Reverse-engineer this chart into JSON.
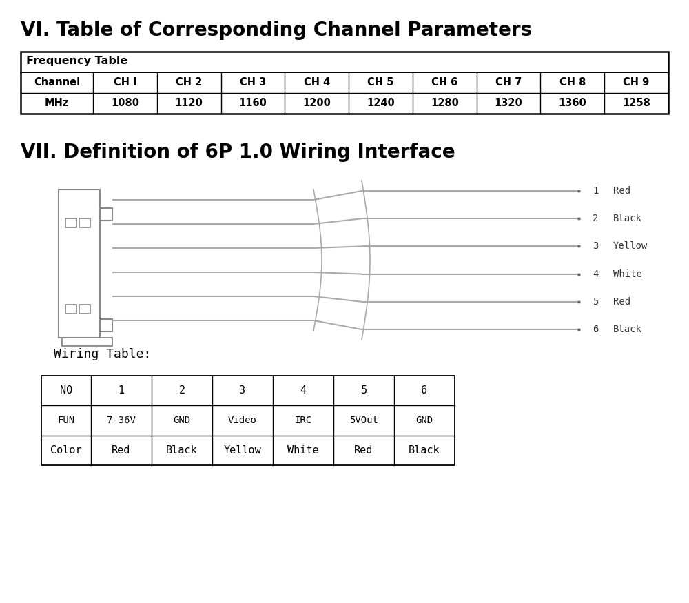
{
  "title1": "VI. Table of Corresponding Channel Parameters",
  "title2": "VII. Definition of 6P 1.0 Wiring Interface",
  "wiring_table_title": "Wiring Table:",
  "freq_table_header": "Frequency Table",
  "freq_channels": [
    "Channel",
    "CH I",
    "CH 2",
    "CH 3",
    "CH 4",
    "CH 5",
    "CH 6",
    "CH 7",
    "CH 8",
    "CH 9"
  ],
  "freq_mhz": [
    "MHz",
    "1080",
    "1120",
    "1160",
    "1200",
    "1240",
    "1280",
    "1320",
    "1360",
    "1258"
  ],
  "wire_numbers": [
    "1",
    "2",
    "3",
    "4",
    "5",
    "6"
  ],
  "wire_colors": [
    "Red",
    "Black",
    "Yellow",
    "White",
    "Red",
    "Black"
  ],
  "wiring_no": [
    "NO",
    "1",
    "2",
    "3",
    "4",
    "5",
    "6"
  ],
  "wiring_fun": [
    "FUN",
    "7-36V",
    "GND",
    "Video",
    "IRC",
    "5VOut",
    "GND"
  ],
  "wiring_color": [
    "Color",
    "Red",
    "Black",
    "Yellow",
    "White",
    "Red",
    "Black"
  ],
  "bg_color": "#ffffff",
  "text_color": "#000000",
  "wire_color_draw": "#aaaaaa",
  "connector_color": "#888888"
}
